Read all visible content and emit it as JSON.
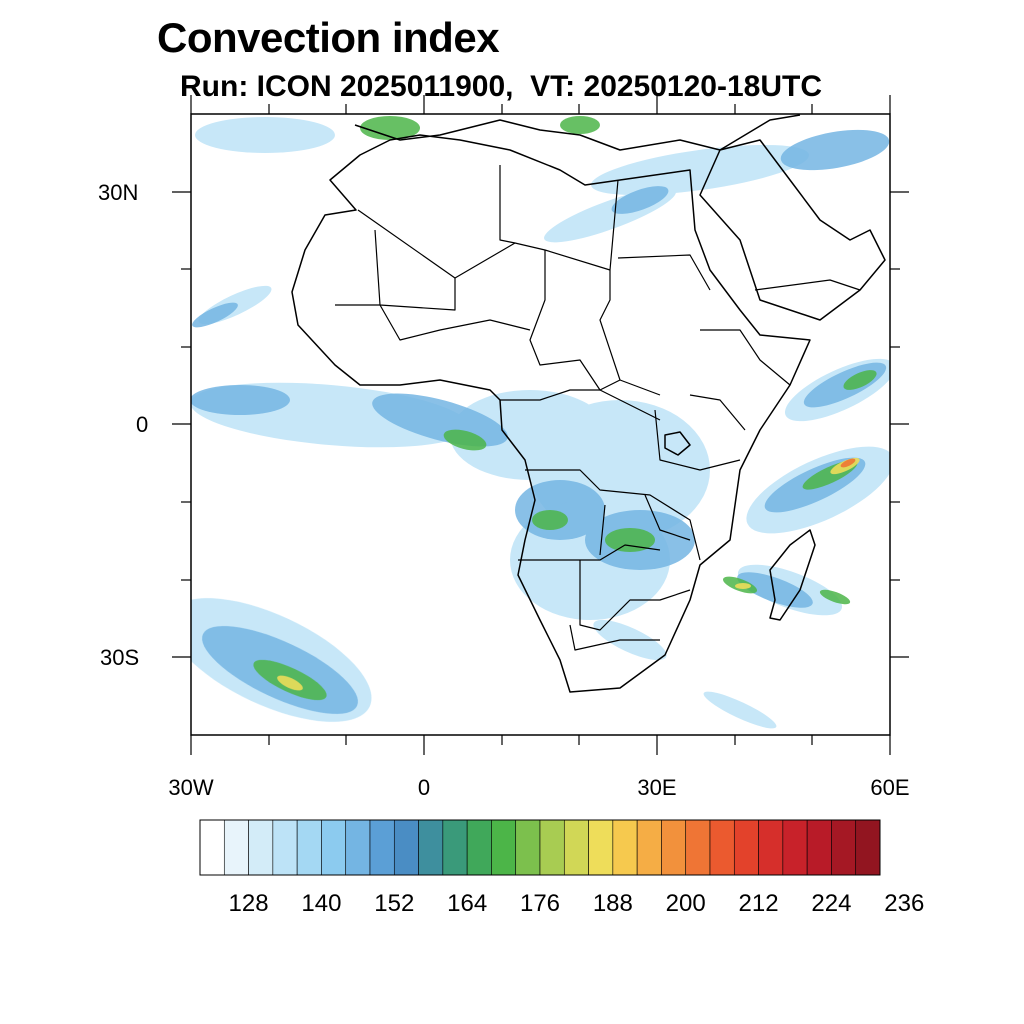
{
  "title": "Convection index",
  "subtitle": "Run: ICON 2025011900,  VT: 20250120-18UTC",
  "map": {
    "lon_range": [
      -30,
      60
    ],
    "lat_range": [
      -40,
      40
    ],
    "lat_labels": [
      "30N",
      "0",
      "30S"
    ],
    "lon_labels": [
      "30W",
      "0",
      "30E",
      "60E"
    ]
  },
  "colorbar": {
    "labels": [
      "128",
      "140",
      "152",
      "164",
      "176",
      "188",
      "200",
      "212",
      "224",
      "236"
    ],
    "colors": [
      "#ffffff",
      "#e8f4fb",
      "#d3ecf8",
      "#bde3f7",
      "#a4d8f3",
      "#8ccbef",
      "#74b5e3",
      "#5b9fd6",
      "#4a8dc4",
      "#3e8f9e",
      "#3a9a7a",
      "#40a85a",
      "#4cb548",
      "#7cc04d",
      "#a8cc52",
      "#d1d756",
      "#eedd5a",
      "#f6c94e",
      "#f5ad45",
      "#f2913c",
      "#ef7535",
      "#eb5a2f",
      "#e3422b",
      "#d62f2b",
      "#c8222a",
      "#b81b28",
      "#a51824",
      "#921520"
    ]
  }
}
